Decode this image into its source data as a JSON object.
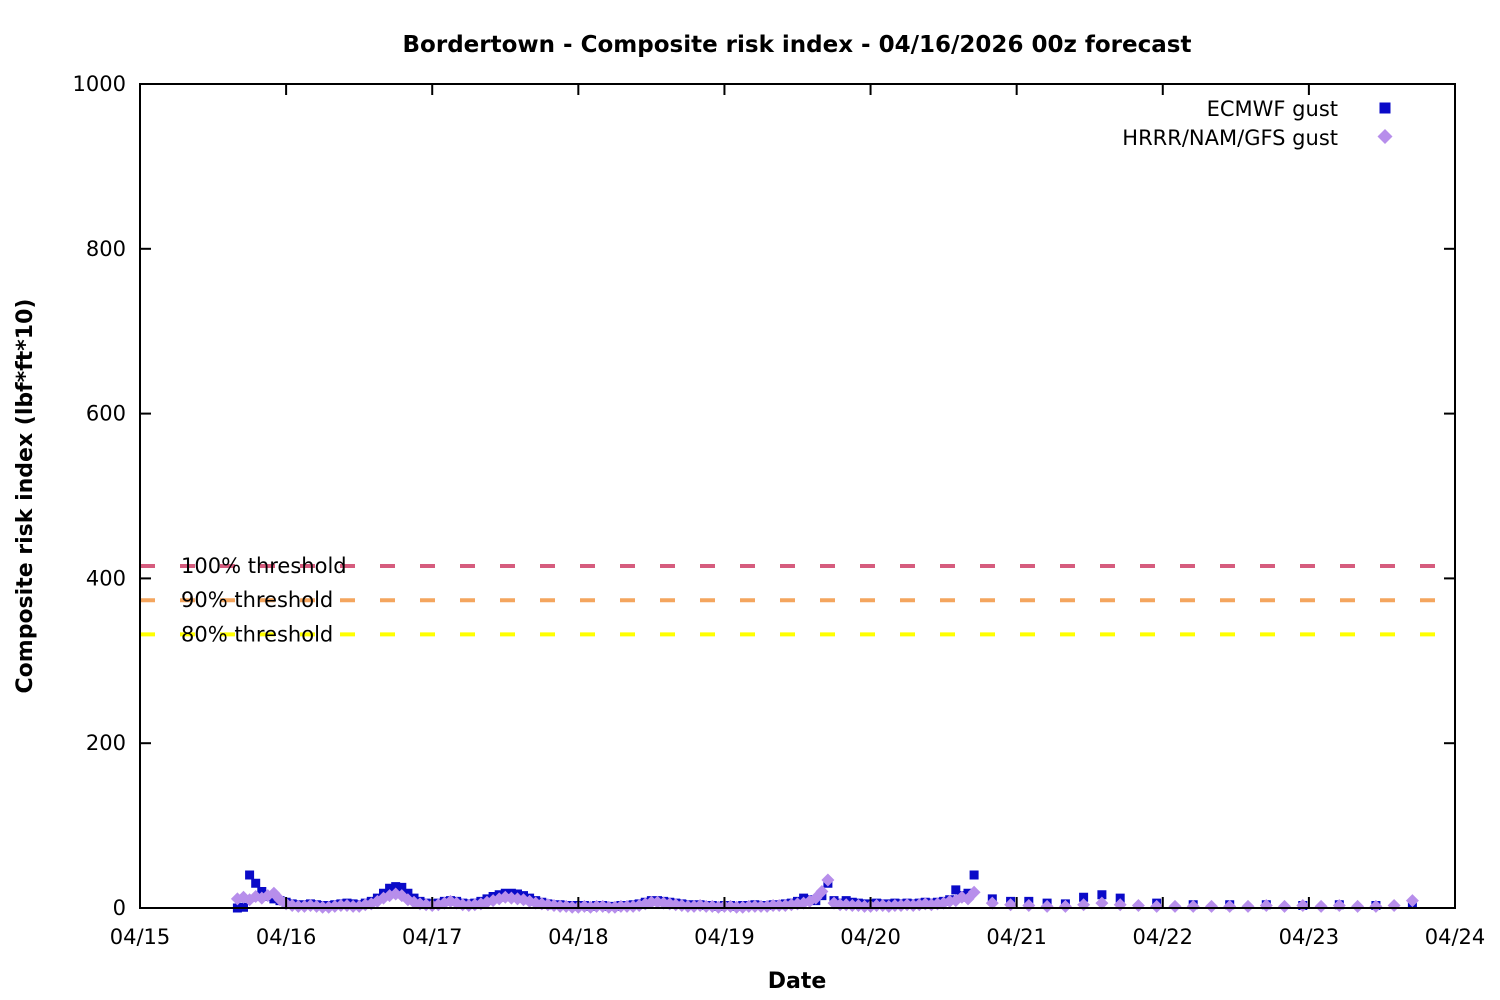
{
  "chart_data": {
    "type": "scatter",
    "title": "Bordertown - Composite risk index - 04/16/2026 00z forecast",
    "xlabel": "Date",
    "ylabel": "Composite risk index (lbf*ft*10)",
    "x_tick_labels": [
      "04/15",
      "04/16",
      "04/17",
      "04/18",
      "04/19",
      "04/20",
      "04/21",
      "04/22",
      "04/23",
      "04/24"
    ],
    "x_range_days": [
      0,
      9
    ],
    "x_unit": "hours since 04/15 00:00",
    "ylim": [
      0,
      1000
    ],
    "y_ticks": [
      0,
      200,
      400,
      600,
      800,
      1000
    ],
    "grid": false,
    "legend_position": "top-right-inside",
    "axis_color": "#000000",
    "background_color": "#ffffff",
    "thresholds": [
      {
        "label": "100% threshold",
        "value": 415,
        "color": "#d65c7e"
      },
      {
        "label": "90% threshold",
        "value": 373.5,
        "color": "#f4a55e"
      },
      {
        "label": "80% threshold",
        "value": 332,
        "color": "#ffff00"
      }
    ],
    "series": [
      {
        "name": "ECMWF gust",
        "marker": "square",
        "color": "#0a0ac8",
        "dense": {
          "start_hour": 16,
          "step_hours": 1,
          "values": [
            0,
            1,
            40,
            30,
            20,
            14,
            11,
            9,
            7,
            5,
            4,
            4,
            5,
            4,
            3,
            3,
            4,
            5,
            6,
            5,
            4,
            6,
            8,
            12,
            18,
            24,
            26,
            25,
            18,
            12,
            8,
            6,
            5,
            6,
            8,
            9,
            8,
            6,
            5,
            6,
            8,
            11,
            14,
            16,
            18,
            18,
            17,
            15,
            12,
            9,
            7,
            5,
            4,
            4,
            3,
            3,
            3,
            3,
            2,
            3,
            3,
            2,
            2,
            3,
            3,
            4,
            5,
            7,
            9,
            9,
            8,
            7,
            6,
            5,
            4,
            4,
            4,
            3,
            3,
            2,
            3,
            3,
            2,
            3,
            3,
            4,
            3,
            3,
            4,
            4,
            5,
            6,
            8,
            12,
            10,
            9,
            15,
            30,
            9,
            6,
            9,
            7,
            6,
            5,
            5,
            6,
            5,
            5,
            6,
            5,
            6,
            5,
            6,
            7,
            6,
            7,
            8,
            10,
            22,
            15,
            18,
            40
          ]
        },
        "sparse_points": [
          [
            140,
            11
          ],
          [
            143,
            8
          ],
          [
            146,
            8
          ],
          [
            149,
            6
          ],
          [
            152,
            5
          ],
          [
            155,
            13
          ],
          [
            158,
            16
          ],
          [
            161,
            12
          ],
          [
            167,
            6
          ],
          [
            173,
            4
          ],
          [
            179,
            4
          ],
          [
            185,
            4
          ],
          [
            191,
            3
          ],
          [
            197,
            4
          ],
          [
            203,
            3
          ],
          [
            209,
            5
          ]
        ]
      },
      {
        "name": "HRRR/NAM/GFS gust",
        "marker": "diamond",
        "color": "#b78eeb",
        "dense": {
          "start_hour": 16,
          "step_hours": 1,
          "values": [
            11,
            13,
            10,
            14,
            12,
            15,
            18,
            10,
            5,
            3,
            2,
            2,
            3,
            2,
            1,
            1,
            2,
            3,
            3,
            2,
            2,
            4,
            5,
            8,
            12,
            15,
            17,
            15,
            10,
            7,
            5,
            4,
            3,
            4,
            6,
            8,
            6,
            4,
            3,
            4,
            5,
            7,
            9,
            11,
            13,
            12,
            11,
            10,
            8,
            6,
            5,
            4,
            3,
            2,
            2,
            1,
            1,
            2,
            1,
            2,
            2,
            1,
            1,
            2,
            2,
            2,
            3,
            5,
            7,
            7,
            6,
            5,
            4,
            3,
            2,
            2,
            3,
            2,
            2,
            1,
            2,
            2,
            1,
            1,
            2,
            2,
            2,
            2,
            3,
            3,
            3,
            4,
            5,
            6,
            8,
            12,
            20,
            34,
            6,
            4,
            4,
            3,
            3,
            2,
            2,
            3,
            3,
            2,
            3,
            3,
            4,
            3,
            4,
            5,
            4,
            5,
            6,
            8,
            9,
            13,
            11,
            19
          ]
        },
        "sparse_points": [
          [
            140,
            6
          ],
          [
            143,
            4
          ],
          [
            146,
            3
          ],
          [
            149,
            2
          ],
          [
            152,
            2
          ],
          [
            155,
            4
          ],
          [
            158,
            6
          ],
          [
            161,
            4
          ],
          [
            164,
            3
          ],
          [
            167,
            2
          ],
          [
            170,
            2
          ],
          [
            173,
            2
          ],
          [
            176,
            2
          ],
          [
            179,
            2
          ],
          [
            182,
            2
          ],
          [
            185,
            3
          ],
          [
            188,
            2
          ],
          [
            191,
            3
          ],
          [
            194,
            2
          ],
          [
            197,
            3
          ],
          [
            200,
            2
          ],
          [
            203,
            2
          ],
          [
            206,
            3
          ],
          [
            209,
            9
          ]
        ]
      }
    ]
  }
}
